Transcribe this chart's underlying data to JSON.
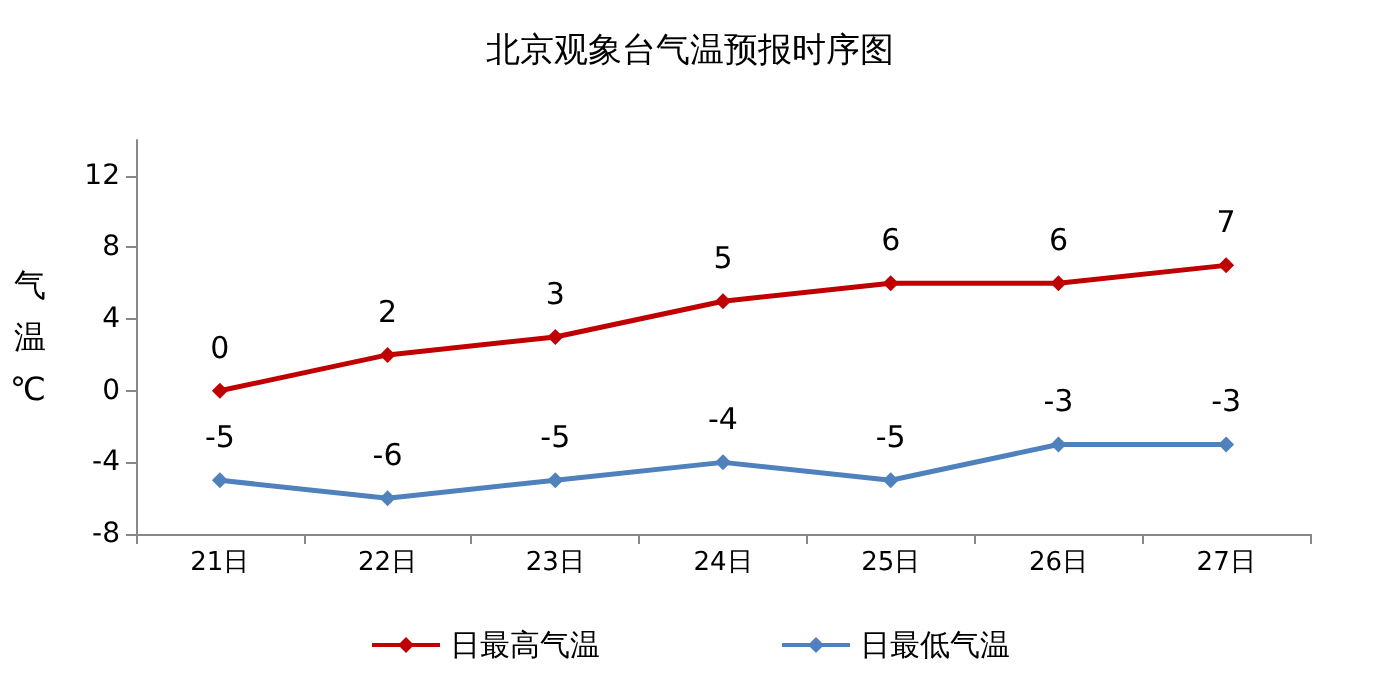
{
  "chart_data": {
    "type": "line",
    "title": "北京观象台气温预报时序图",
    "ylabel": "气温℃",
    "categories": [
      "21日",
      "22日",
      "23日",
      "24日",
      "25日",
      "26日",
      "27日"
    ],
    "series": [
      {
        "name": "日最高气温",
        "color": "#c00000",
        "values": [
          0,
          2,
          3,
          5,
          6,
          6,
          7
        ]
      },
      {
        "name": "日最低气温",
        "color": "#4f81bd",
        "values": [
          -5,
          -6,
          -5,
          -4,
          -5,
          -3,
          -3
        ]
      }
    ],
    "ylim": [
      -8,
      14
    ],
    "yticks": [
      -8,
      -4,
      0,
      4,
      8,
      12
    ],
    "grid": false,
    "legend": "bottom",
    "marker": "diamond",
    "line_style": "solid",
    "data_labels": true
  }
}
